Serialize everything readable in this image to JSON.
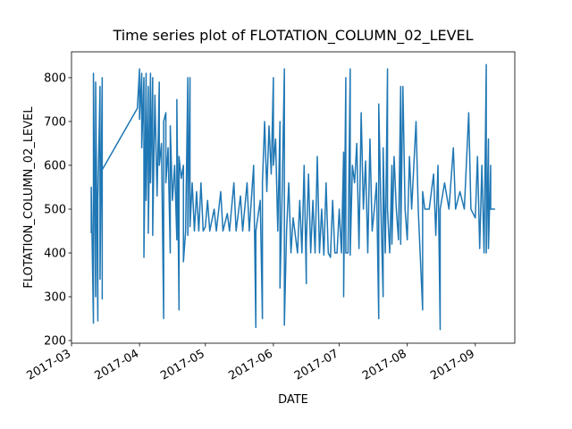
{
  "chart_data": {
    "type": "line",
    "title": "Time series plot of FLOTATION_COLUMN_02_LEVEL",
    "xlabel": "DATE",
    "ylabel": "FLOTATION_COLUMN_02_LEVEL",
    "color": "#1f77b4",
    "xlim": [
      "2017-03-01",
      "2017-09-19"
    ],
    "xticks": [
      {
        "value": "2017-03-01",
        "label": "2017-03"
      },
      {
        "value": "2017-04-01",
        "label": "2017-04"
      },
      {
        "value": "2017-05-01",
        "label": "2017-05"
      },
      {
        "value": "2017-06-01",
        "label": "2017-06"
      },
      {
        "value": "2017-07-01",
        "label": "2017-07"
      },
      {
        "value": "2017-08-01",
        "label": "2017-08"
      },
      {
        "value": "2017-09-01",
        "label": "2017-09"
      }
    ],
    "ylim": [
      194,
      859
    ],
    "yticks": [
      200,
      300,
      400,
      500,
      600,
      700,
      800
    ],
    "x": [
      "2017-03-10",
      "2017-03-10",
      "2017-03-11",
      "2017-03-11",
      "2017-03-12",
      "2017-03-12",
      "2017-03-13",
      "2017-03-13",
      "2017-03-14",
      "2017-03-14",
      "2017-03-15",
      "2017-03-15",
      "2017-03-15",
      "2017-03-31",
      "2017-04-01",
      "2017-04-01",
      "2017-04-02",
      "2017-04-02",
      "2017-04-03",
      "2017-04-03",
      "2017-04-04",
      "2017-04-04",
      "2017-04-05",
      "2017-04-05",
      "2017-04-06",
      "2017-04-06",
      "2017-04-07",
      "2017-04-07",
      "2017-04-08",
      "2017-04-09",
      "2017-04-10",
      "2017-04-10",
      "2017-04-11",
      "2017-04-12",
      "2017-04-12",
      "2017-04-13",
      "2017-04-13",
      "2017-04-14",
      "2017-04-15",
      "2017-04-15",
      "2017-04-16",
      "2017-04-17",
      "2017-04-18",
      "2017-04-18",
      "2017-04-19",
      "2017-04-19",
      "2017-04-20",
      "2017-04-21",
      "2017-04-21",
      "2017-04-22",
      "2017-04-23",
      "2017-04-23",
      "2017-04-24",
      "2017-04-24",
      "2017-04-25",
      "2017-04-26",
      "2017-04-27",
      "2017-04-28",
      "2017-04-29",
      "2017-04-30",
      "2017-05-01",
      "2017-05-02",
      "2017-05-03",
      "2017-05-05",
      "2017-05-06",
      "2017-05-08",
      "2017-05-09",
      "2017-05-11",
      "2017-05-12",
      "2017-05-14",
      "2017-05-15",
      "2017-05-17",
      "2017-05-18",
      "2017-05-20",
      "2017-05-21",
      "2017-05-23",
      "2017-05-24",
      "2017-05-24",
      "2017-05-26",
      "2017-05-27",
      "2017-05-27",
      "2017-05-28",
      "2017-05-29",
      "2017-05-30",
      "2017-05-31",
      "2017-06-01",
      "2017-06-01",
      "2017-06-02",
      "2017-06-03",
      "2017-06-04",
      "2017-06-04",
      "2017-06-05",
      "2017-06-06",
      "2017-06-06",
      "2017-06-07",
      "2017-06-08",
      "2017-06-09",
      "2017-06-10",
      "2017-06-11",
      "2017-06-12",
      "2017-06-13",
      "2017-06-14",
      "2017-06-15",
      "2017-06-16",
      "2017-06-16",
      "2017-06-17",
      "2017-06-18",
      "2017-06-19",
      "2017-06-20",
      "2017-06-21",
      "2017-06-22",
      "2017-06-23",
      "2017-06-24",
      "2017-06-25",
      "2017-06-26",
      "2017-06-27",
      "2017-06-28",
      "2017-06-29",
      "2017-06-30",
      "2017-07-01",
      "2017-07-02",
      "2017-07-03",
      "2017-07-03",
      "2017-07-04",
      "2017-07-04",
      "2017-07-05",
      "2017-07-06",
      "2017-07-06",
      "2017-07-07",
      "2017-07-08",
      "2017-07-09",
      "2017-07-10",
      "2017-07-11",
      "2017-07-12",
      "2017-07-13",
      "2017-07-14",
      "2017-07-15",
      "2017-07-16",
      "2017-07-17",
      "2017-07-18",
      "2017-07-19",
      "2017-07-19",
      "2017-07-20",
      "2017-07-21",
      "2017-07-21",
      "2017-07-22",
      "2017-07-23",
      "2017-07-23",
      "2017-07-24",
      "2017-07-25",
      "2017-07-25",
      "2017-07-26",
      "2017-07-27",
      "2017-07-28",
      "2017-07-29",
      "2017-07-29",
      "2017-07-30",
      "2017-07-31",
      "2017-08-01",
      "2017-08-02",
      "2017-08-03",
      "2017-08-05",
      "2017-08-06",
      "2017-08-08",
      "2017-08-08",
      "2017-08-09",
      "2017-08-11",
      "2017-08-13",
      "2017-08-14",
      "2017-08-15",
      "2017-08-16",
      "2017-08-16",
      "2017-08-18",
      "2017-08-20",
      "2017-08-22",
      "2017-08-23",
      "2017-08-25",
      "2017-08-27",
      "2017-08-29",
      "2017-08-30",
      "2017-09-01",
      "2017-09-02",
      "2017-09-03",
      "2017-09-04",
      "2017-09-05",
      "2017-09-06",
      "2017-09-06",
      "2017-09-07",
      "2017-09-07",
      "2017-09-08",
      "2017-09-08",
      "2017-09-09",
      "2017-09-10"
    ],
    "values": [
      445,
      550,
      240,
      810,
      300,
      790,
      245,
      520,
      780,
      340,
      800,
      295,
      590,
      730,
      820,
      705,
      810,
      640,
      800,
      390,
      810,
      520,
      780,
      445,
      810,
      560,
      800,
      440,
      760,
      530,
      790,
      600,
      650,
      250,
      700,
      720,
      560,
      640,
      400,
      690,
      520,
      600,
      430,
      750,
      270,
      620,
      570,
      600,
      380,
      450,
      800,
      440,
      800,
      460,
      560,
      450,
      540,
      450,
      560,
      450,
      460,
      520,
      450,
      500,
      450,
      540,
      450,
      490,
      450,
      560,
      450,
      530,
      450,
      560,
      450,
      600,
      230,
      450,
      520,
      250,
      560,
      700,
      540,
      690,
      580,
      800,
      600,
      660,
      450,
      700,
      320,
      540,
      820,
      235,
      450,
      560,
      400,
      480,
      440,
      400,
      520,
      400,
      600,
      330,
      420,
      580,
      400,
      520,
      400,
      620,
      400,
      500,
      395,
      560,
      400,
      390,
      520,
      400,
      400,
      500,
      400,
      630,
      300,
      800,
      400,
      400,
      820,
      395,
      600,
      560,
      650,
      410,
      720,
      500,
      610,
      400,
      660,
      450,
      500,
      560,
      250,
      740,
      500,
      300,
      640,
      400,
      820,
      500,
      400,
      600,
      420,
      620,
      500,
      430,
      780,
      420,
      780,
      500,
      430,
      620,
      500,
      700,
      500,
      270,
      540,
      500,
      500,
      580,
      440,
      600,
      225,
      500,
      560,
      500,
      640,
      500,
      540,
      500,
      720,
      500,
      480,
      620,
      410,
      600,
      400,
      830,
      400,
      660,
      410,
      600,
      500,
      500,
      500
    ]
  }
}
